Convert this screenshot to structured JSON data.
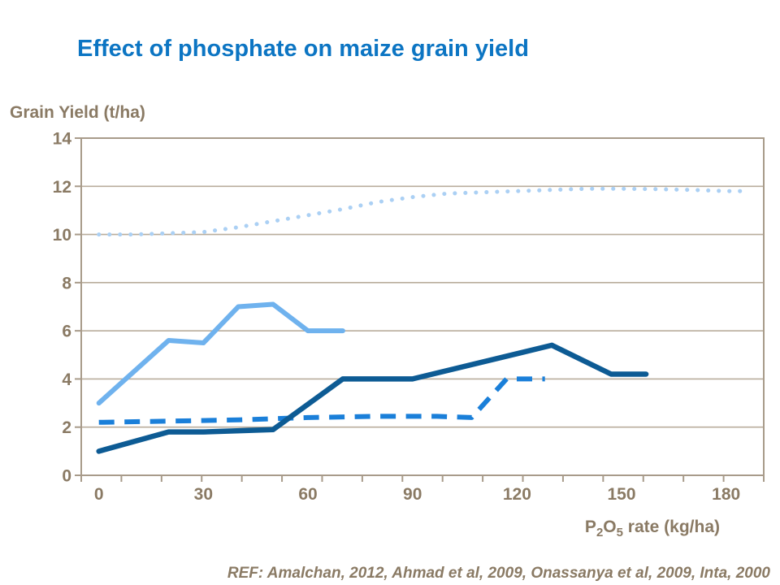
{
  "slide": {
    "title": "Effect of phosphate on maize grain yield",
    "reference": "REF: Amalchan, 2012, Ahmad et al, 2009, Onassanya et al, 2009, Inta, 2000"
  },
  "colors": {
    "title": "#0c75c3",
    "axis_text": "#8a7a64",
    "gridline": "#b9ad9c",
    "axis_line": "#a89b8a",
    "series_dotted_pale": "#abd0f4",
    "series_light_solid": "#6fb2ee",
    "series_dashed_blue": "#1a7fd9",
    "series_navy_solid": "#0d5b94"
  },
  "chart_data": {
    "type": "line",
    "title": "Effect of phosphate on maize grain yield",
    "ylabel": "Grain Yield (t/ha)",
    "xlabel": "P2O5 rate (kg/ha)",
    "x_axis_title_parts": [
      "P",
      "2",
      "O",
      "5",
      " rate (kg/ha)"
    ],
    "xlim": [
      0,
      190
    ],
    "ylim": [
      0,
      14
    ],
    "x_ticks": [
      0,
      30,
      60,
      90,
      120,
      150,
      180
    ],
    "y_ticks": [
      0,
      2,
      4,
      6,
      8,
      10,
      12,
      14
    ],
    "grid": "horizontal",
    "legend": "none",
    "series": [
      {
        "name": "pale-blue-dotted",
        "style": "dotted",
        "color_key": "series_dotted_pale",
        "width": 5,
        "x": [
          0,
          10,
          20,
          30,
          40,
          50,
          60,
          70,
          80,
          90,
          100,
          110,
          120,
          130,
          140,
          150,
          160,
          170,
          180,
          186
        ],
        "y": [
          10.0,
          10.0,
          10.05,
          10.1,
          10.3,
          10.55,
          10.8,
          11.05,
          11.35,
          11.55,
          11.7,
          11.75,
          11.8,
          11.85,
          11.9,
          11.9,
          11.88,
          11.85,
          11.8,
          11.8
        ]
      },
      {
        "name": "light-blue-solid",
        "style": "solid",
        "color_key": "series_light_solid",
        "width": 6,
        "x": [
          0,
          20,
          30,
          40,
          50,
          60,
          70
        ],
        "y": [
          3.0,
          5.6,
          5.5,
          7.0,
          7.1,
          6.0,
          6.0
        ]
      },
      {
        "name": "blue-dashed",
        "style": "dashed",
        "color_key": "series_dashed_blue",
        "width": 6,
        "x": [
          0,
          20,
          40,
          60,
          80,
          97,
          107,
          117,
          128
        ],
        "y": [
          2.2,
          2.25,
          2.3,
          2.4,
          2.45,
          2.45,
          2.4,
          4.0,
          4.0
        ]
      },
      {
        "name": "navy-solid",
        "style": "solid",
        "color_key": "series_navy_solid",
        "width": 6.5,
        "x": [
          0,
          20,
          30,
          50,
          70,
          90,
          130,
          147,
          157
        ],
        "y": [
          1.0,
          1.8,
          1.8,
          1.9,
          4.0,
          4.0,
          5.4,
          4.2,
          4.2
        ]
      }
    ]
  }
}
